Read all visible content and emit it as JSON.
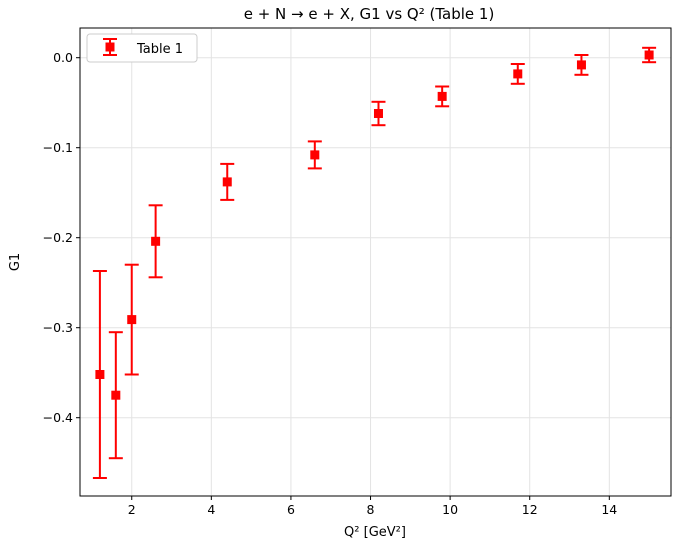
{
  "chart_data": {
    "type": "scatter",
    "title": "e + N → e + X, G1 vs Q² (Table 1)",
    "xlabel": "Q² [GeV²]",
    "ylabel": "G1",
    "xlim": [
      0.7,
      15.55
    ],
    "ylim": [
      -0.487,
      0.033
    ],
    "xticks": [
      2,
      4,
      6,
      8,
      10,
      12,
      14
    ],
    "yticks": [
      0.0,
      -0.1,
      -0.2,
      -0.3,
      -0.4
    ],
    "xtick_labels": [
      "2",
      "4",
      "6",
      "8",
      "10",
      "12",
      "14"
    ],
    "ytick_labels": [
      "0.0",
      "−0.1",
      "−0.2",
      "−0.3",
      "−0.4"
    ],
    "grid": true,
    "legend_position": "top-left",
    "series": [
      {
        "name": "Table 1",
        "color": "#ff0000",
        "marker": "square",
        "points": [
          {
            "x": 1.2,
            "y": -0.352,
            "yerr": 0.115
          },
          {
            "x": 1.6,
            "y": -0.375,
            "yerr": 0.07
          },
          {
            "x": 2.0,
            "y": -0.291,
            "yerr": 0.061
          },
          {
            "x": 2.6,
            "y": -0.204,
            "yerr": 0.04
          },
          {
            "x": 4.4,
            "y": -0.138,
            "yerr": 0.02
          },
          {
            "x": 6.6,
            "y": -0.108,
            "yerr": 0.015
          },
          {
            "x": 8.2,
            "y": -0.062,
            "yerr": 0.013
          },
          {
            "x": 9.8,
            "y": -0.043,
            "yerr": 0.011
          },
          {
            "x": 11.7,
            "y": -0.018,
            "yerr": 0.011
          },
          {
            "x": 13.3,
            "y": -0.008,
            "yerr": 0.011
          },
          {
            "x": 15.0,
            "y": 0.003,
            "yerr": 0.008
          }
        ]
      }
    ]
  }
}
